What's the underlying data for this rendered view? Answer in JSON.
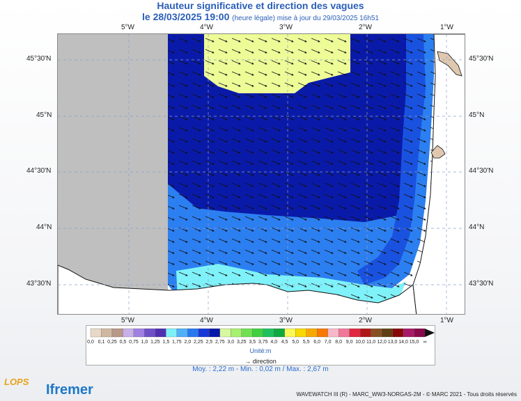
{
  "header": {
    "title": "Hauteur significative et direction des vagues",
    "date_label": "le 28/03/2025 19:00",
    "date_note": "(heure légale) mise à jour du 29/03/2025 16h51"
  },
  "axes": {
    "lon_ticks": [
      "5°W",
      "4°W",
      "3°W",
      "2°W",
      "1°W"
    ],
    "lat_ticks": [
      "45°30'N",
      "45°N",
      "44°30'N",
      "44°N",
      "43°30'N"
    ]
  },
  "legend": {
    "values": [
      "0,0",
      "0,1",
      "0,25",
      "0,5",
      "0,75",
      "1,0",
      "1,25",
      "1,5",
      "1,75",
      "2,0",
      "2,25",
      "2,5",
      "2,75",
      "3,0",
      "3,25",
      "3,5",
      "3,75",
      "4,0",
      "4,5",
      "5,0",
      "5,5",
      "6,0",
      "7,0",
      "8,0",
      "9,0",
      "10,0",
      "11,0",
      "12,0",
      "13,0",
      "14,0",
      "15,0",
      "∞"
    ],
    "colors": [
      "#e8d8c8",
      "#d0b8a0",
      "#b89888",
      "#c8b0e8",
      "#a080e0",
      "#7050c8",
      "#5030b0",
      "#80f0f8",
      "#50b0f8",
      "#2878f0",
      "#1838d8",
      "#0818a8",
      "#d8f8a0",
      "#a8f070",
      "#70e050",
      "#40d040",
      "#20c060",
      "#10a840",
      "#f8f858",
      "#f8d800",
      "#f8a800",
      "#f87800",
      "#f8b8c8",
      "#f07898",
      "#e02840",
      "#b01818",
      "#885020",
      "#604010",
      "#880808",
      "#a81868",
      "#880848"
    ],
    "unit_label": "Unité:m",
    "direction_label": "direction"
  },
  "stats": {
    "text": "Moy. : 2,22 m   -   Min. : 0,02 m / Max. : 2,67 m"
  },
  "footer": {
    "text": "WAVEWATCH III (R) - MARC_WW3-NORGAS-2M - © MARC 2021 - Tous droits réservés",
    "logo_lops": "LOPS",
    "logo_ifremer": "Ifremer"
  },
  "map": {
    "land_color": "#e0c8b0",
    "nodata_color": "#bfbfbf",
    "swell_direction": "ESE"
  }
}
